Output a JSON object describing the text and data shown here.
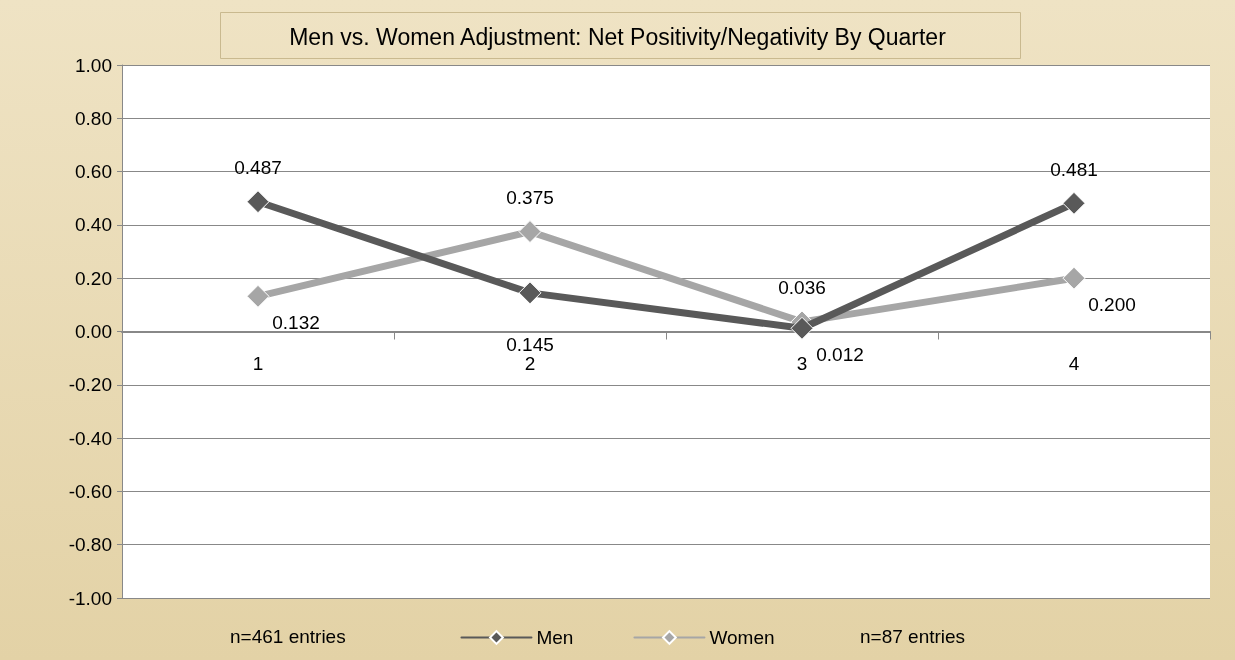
{
  "chart_data": {
    "type": "line",
    "title": "Men vs. Women Adjustment: Net Positivity/Negativity By Quarter",
    "categories": [
      "1",
      "2",
      "3",
      "4"
    ],
    "series": [
      {
        "name": "Men",
        "color": "#595959",
        "values": [
          0.487,
          0.145,
          0.012,
          0.481
        ],
        "value_labels": [
          "0.487",
          "0.145",
          "0.012",
          "0.481"
        ]
      },
      {
        "name": "Women",
        "color": "#a6a6a6",
        "values": [
          0.132,
          0.375,
          0.036,
          0.2
        ],
        "value_labels": [
          "0.132",
          "0.375",
          "0.036",
          "0.200"
        ]
      }
    ],
    "ylim": [
      -1,
      1
    ],
    "yticks": [
      {
        "value": -1,
        "label": "-1.00"
      },
      {
        "value": -0.8,
        "label": "-0.80"
      },
      {
        "value": -0.6,
        "label": "-0.60"
      },
      {
        "value": -0.4,
        "label": "-0.40"
      },
      {
        "value": -0.2,
        "label": "-0.20"
      },
      {
        "value": 0,
        "label": "0.00"
      },
      {
        "value": 0.2,
        "label": "0.20"
      },
      {
        "value": 0.4,
        "label": "0.40"
      },
      {
        "value": 0.6,
        "label": "0.60"
      },
      {
        "value": 0.8,
        "label": "0.80"
      },
      {
        "value": 1,
        "label": "1.00"
      }
    ],
    "grid": "y",
    "legend": "bottom",
    "marker": "diamond",
    "line_style": "solid",
    "annotations": [
      "n=461 entries",
      "n=87 entries"
    ]
  }
}
